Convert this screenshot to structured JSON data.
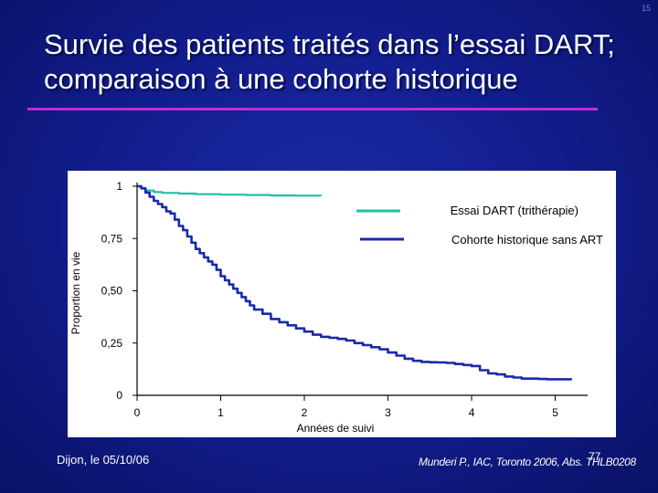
{
  "slide_number": "15",
  "title": "Survie des patients traités dans l’essai DART; comparaison à une cohorte historique",
  "footer_left": "Dijon, le 05/10/06",
  "footer_right": "Munderi P., IAC, Toronto 2006, Abs. THLB0208",
  "page_number": "77",
  "colors": {
    "accent_rule": "#c02cd8",
    "dart_series": "#20c0a0",
    "cohort_series": "#1a2aa8"
  },
  "chart_data": {
    "type": "line",
    "title": "",
    "xlabel": "Années de suivi",
    "ylabel": "Proportion en vie",
    "xlim": [
      0,
      5.3
    ],
    "ylim": [
      0,
      1
    ],
    "x_ticks": [
      0,
      1,
      2,
      3,
      4,
      5
    ],
    "x_tick_labels": [
      "0",
      "1",
      "2",
      "3",
      "4",
      "5"
    ],
    "y_ticks": [
      0,
      0.25,
      0.5,
      0.75,
      1
    ],
    "y_tick_labels": [
      "0",
      "0,25",
      "0,50",
      "0,75",
      "1"
    ],
    "grid": false,
    "legend_position": "top-right",
    "series": [
      {
        "name": "Essai DART (trithérapie)",
        "color": "#20c0a0",
        "x": [
          0,
          0.05,
          0.1,
          0.2,
          0.3,
          0.5,
          0.7,
          1.0,
          1.3,
          1.6,
          1.9,
          2.2
        ],
        "y": [
          1.0,
          0.99,
          0.98,
          0.972,
          0.968,
          0.965,
          0.962,
          0.96,
          0.958,
          0.956,
          0.955,
          0.953
        ]
      },
      {
        "name": "Cohorte historique sans ART",
        "color": "#1a2aa8",
        "x": [
          0,
          0.05,
          0.1,
          0.15,
          0.2,
          0.25,
          0.3,
          0.35,
          0.4,
          0.45,
          0.5,
          0.55,
          0.6,
          0.65,
          0.7,
          0.75,
          0.8,
          0.85,
          0.9,
          0.95,
          1.0,
          1.05,
          1.1,
          1.15,
          1.2,
          1.25,
          1.3,
          1.35,
          1.4,
          1.5,
          1.6,
          1.7,
          1.8,
          1.9,
          2.0,
          2.1,
          2.2,
          2.3,
          2.4,
          2.5,
          2.6,
          2.7,
          2.8,
          2.9,
          3.0,
          3.1,
          3.2,
          3.3,
          3.4,
          3.5,
          3.6,
          3.7,
          3.8,
          3.9,
          4.0,
          4.1,
          4.2,
          4.3,
          4.4,
          4.5,
          4.6,
          4.7,
          4.8,
          4.9,
          5.0,
          5.1,
          5.2
        ],
        "y": [
          1.0,
          0.99,
          0.97,
          0.95,
          0.93,
          0.915,
          0.9,
          0.88,
          0.87,
          0.84,
          0.81,
          0.79,
          0.76,
          0.73,
          0.7,
          0.68,
          0.66,
          0.64,
          0.625,
          0.6,
          0.57,
          0.55,
          0.53,
          0.51,
          0.49,
          0.47,
          0.45,
          0.43,
          0.41,
          0.39,
          0.365,
          0.35,
          0.335,
          0.32,
          0.305,
          0.29,
          0.28,
          0.275,
          0.27,
          0.262,
          0.25,
          0.24,
          0.23,
          0.22,
          0.205,
          0.19,
          0.175,
          0.165,
          0.16,
          0.158,
          0.157,
          0.155,
          0.15,
          0.145,
          0.14,
          0.12,
          0.105,
          0.1,
          0.09,
          0.085,
          0.08,
          0.08,
          0.078,
          0.077,
          0.077,
          0.077,
          0.077
        ]
      }
    ]
  }
}
